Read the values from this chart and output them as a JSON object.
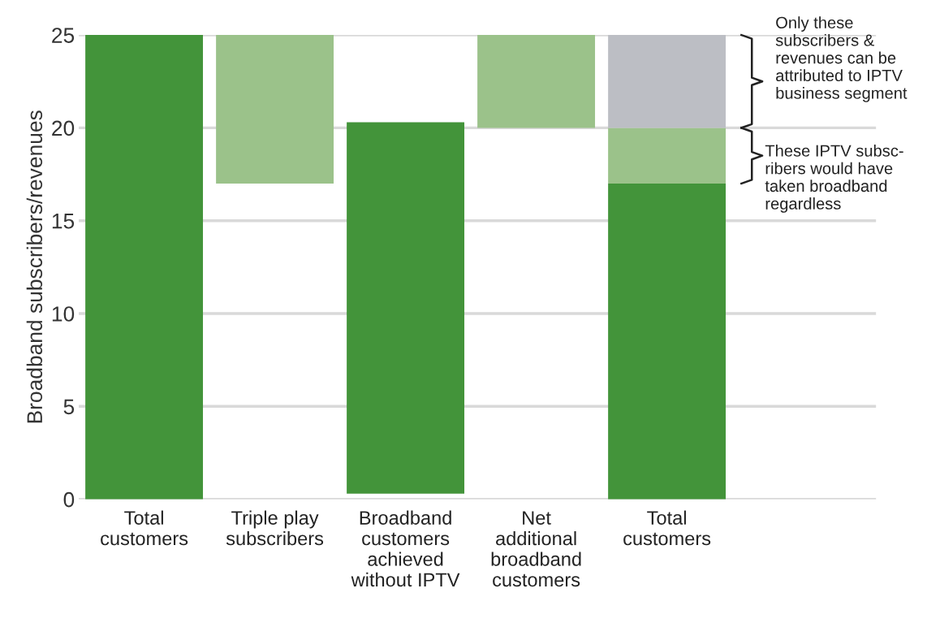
{
  "chart_data": {
    "type": "bar",
    "stacked": true,
    "ylabel": "Broadband subscribers/revenues",
    "categories": [
      "Total\ncustomers",
      "Triple play\nsubscribers",
      "Broadband\ncustomers\nachieved\nwithout IPTV",
      "Net\nadditional\nbroadband\ncustomers",
      "Total\ncustomers"
    ],
    "series": [
      {
        "color": "#43943a",
        "values": [
          25,
          null,
          20,
          null,
          17
        ],
        "base": [
          null,
          null,
          0.3,
          null,
          null
        ]
      },
      {
        "color": "#9bc28a",
        "values": [
          null,
          8,
          null,
          5,
          3
        ],
        "base": [
          null,
          17,
          null,
          20,
          null
        ]
      },
      {
        "color": "#bcbec4",
        "values": [
          null,
          null,
          null,
          null,
          5
        ]
      }
    ],
    "ylim": [
      0,
      25
    ],
    "yticks": [
      0,
      5,
      10,
      15,
      20,
      25
    ],
    "grid": "y",
    "annotations": [
      "Only these\nsubscribers &\nrevenues can be\nattributed to IPTV\nbusiness segment",
      "These IPTV subsc-\nribers would have\ntaken broadband\nregardless"
    ]
  }
}
